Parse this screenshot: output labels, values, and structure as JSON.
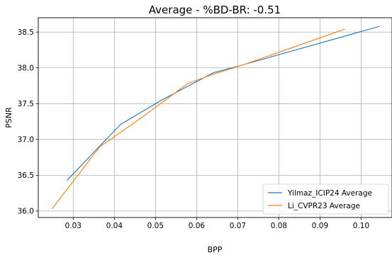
{
  "chart_data": {
    "type": "line",
    "title": "Average - %BD-BR: -0.51",
    "xlabel": "BPP",
    "ylabel": "PSNR",
    "xlim": [
      0.0215,
      0.1075
    ],
    "ylim": [
      35.91,
      38.7
    ],
    "xticks": [
      0.03,
      0.04,
      0.05,
      0.06,
      0.07,
      0.08,
      0.09,
      0.1
    ],
    "xtick_labels": [
      "0.03",
      "0.04",
      "0.05",
      "0.06",
      "0.07",
      "0.08",
      "0.09",
      "0.10"
    ],
    "yticks": [
      36.0,
      36.5,
      37.0,
      37.5,
      38.0,
      38.5
    ],
    "ytick_labels": [
      "36.0",
      "36.5",
      "37.0",
      "37.5",
      "38.0",
      "38.5"
    ],
    "grid": true,
    "legend_position": "lower-right",
    "series": [
      {
        "name": "Yilmaz_ICIP24 Average",
        "color": "#1f77b4",
        "x": [
          0.0285,
          0.0365,
          0.0415,
          0.0515,
          0.064,
          0.0705,
          0.1045
        ],
        "y": [
          36.43,
          36.91,
          37.21,
          37.55,
          37.93,
          38.03,
          38.58
        ]
      },
      {
        "name": "Li_CVPR23 Average",
        "color": "#ff7f0e",
        "x": [
          0.0248,
          0.0365,
          0.0465,
          0.0578,
          0.0635,
          0.0712,
          0.096
        ],
        "y": [
          36.03,
          36.9,
          37.3,
          37.78,
          37.9,
          38.04,
          38.54
        ]
      }
    ]
  }
}
